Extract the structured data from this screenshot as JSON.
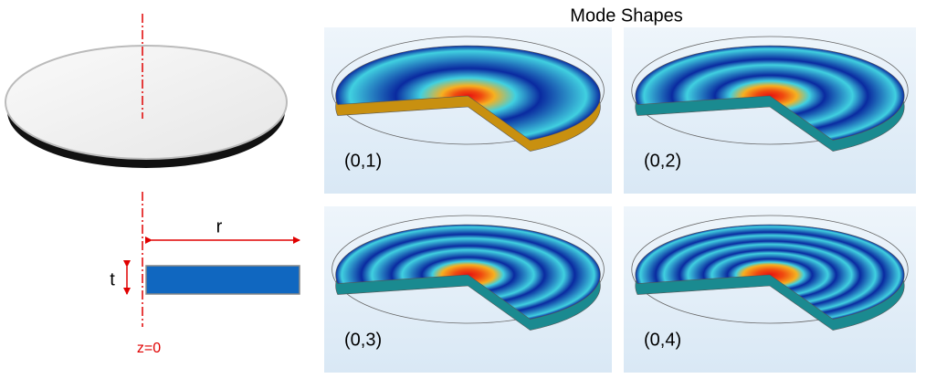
{
  "title": "Mode Shapes",
  "modes": [
    {
      "label": "(0,1)"
    },
    {
      "label": "(0,2)"
    },
    {
      "label": "(0,3)"
    },
    {
      "label": "(0,4)"
    }
  ],
  "dimensions": {
    "radius": "r",
    "thickness": "t",
    "origin": "z=0"
  }
}
